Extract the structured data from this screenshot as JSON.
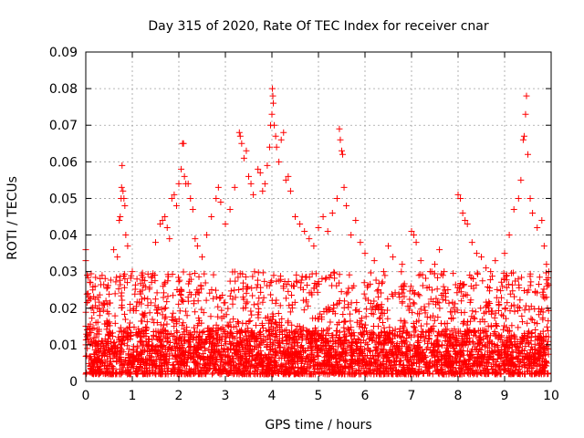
{
  "chart_data": {
    "type": "scatter",
    "title": "Day 315 of 2020, Rate Of TEC Index for receiver cnar",
    "xlabel": "GPS time / hours",
    "ylabel": "ROTI / TECUs",
    "xlim": [
      0,
      10
    ],
    "ylim": [
      0,
      0.09
    ],
    "x_ticks": [
      "0",
      "1",
      "2",
      "3",
      "4",
      "5",
      "6",
      "7",
      "8",
      "9",
      "10"
    ],
    "y_ticks": [
      "0",
      "0.01",
      "0.02",
      "0.03",
      "0.04",
      "0.05",
      "0.06",
      "0.07",
      "0.08",
      "0.09"
    ],
    "grid": true,
    "marker": "+",
    "marker_color": "#ff0000",
    "series": [
      {
        "points": [
          [
            0.0,
            0.033
          ],
          [
            0.0,
            0.036
          ],
          [
            0.03,
            0.029
          ],
          [
            0.05,
            0.024
          ],
          [
            0.08,
            0.023
          ],
          [
            0.1,
            0.027
          ],
          [
            0.15,
            0.025
          ],
          [
            0.2,
            0.026
          ],
          [
            0.25,
            0.02
          ],
          [
            0.3,
            0.018
          ],
          [
            0.6,
            0.036
          ],
          [
            0.68,
            0.034
          ],
          [
            0.72,
            0.044
          ],
          [
            0.74,
            0.045
          ],
          [
            0.76,
            0.05
          ],
          [
            0.77,
            0.053
          ],
          [
            0.78,
            0.059
          ],
          [
            0.8,
            0.052
          ],
          [
            0.82,
            0.05
          ],
          [
            0.84,
            0.048
          ],
          [
            0.86,
            0.04
          ],
          [
            0.9,
            0.037
          ],
          [
            1.0,
            0.03
          ],
          [
            1.1,
            0.028
          ],
          [
            1.2,
            0.029
          ],
          [
            1.5,
            0.038
          ],
          [
            1.6,
            0.043
          ],
          [
            1.65,
            0.044
          ],
          [
            1.7,
            0.045
          ],
          [
            1.75,
            0.042
          ],
          [
            1.8,
            0.039
          ],
          [
            1.85,
            0.05
          ],
          [
            1.9,
            0.051
          ],
          [
            1.95,
            0.048
          ],
          [
            2.0,
            0.054
          ],
          [
            2.05,
            0.058
          ],
          [
            2.08,
            0.065
          ],
          [
            2.1,
            0.065
          ],
          [
            2.12,
            0.056
          ],
          [
            2.15,
            0.054
          ],
          [
            2.2,
            0.054
          ],
          [
            2.25,
            0.05
          ],
          [
            2.3,
            0.047
          ],
          [
            2.35,
            0.039
          ],
          [
            2.4,
            0.037
          ],
          [
            2.5,
            0.034
          ],
          [
            2.6,
            0.04
          ],
          [
            2.7,
            0.045
          ],
          [
            2.8,
            0.05
          ],
          [
            2.85,
            0.053
          ],
          [
            2.9,
            0.049
          ],
          [
            3.0,
            0.043
          ],
          [
            3.1,
            0.047
          ],
          [
            3.2,
            0.053
          ],
          [
            3.3,
            0.068
          ],
          [
            3.32,
            0.067
          ],
          [
            3.35,
            0.065
          ],
          [
            3.4,
            0.061
          ],
          [
            3.45,
            0.063
          ],
          [
            3.5,
            0.056
          ],
          [
            3.55,
            0.054
          ],
          [
            3.6,
            0.051
          ],
          [
            3.7,
            0.058
          ],
          [
            3.75,
            0.057
          ],
          [
            3.8,
            0.052
          ],
          [
            3.85,
            0.054
          ],
          [
            3.9,
            0.059
          ],
          [
            3.95,
            0.064
          ],
          [
            3.97,
            0.07
          ],
          [
            4.0,
            0.073
          ],
          [
            4.01,
            0.08
          ],
          [
            4.02,
            0.078
          ],
          [
            4.03,
            0.076
          ],
          [
            4.05,
            0.07
          ],
          [
            4.08,
            0.067
          ],
          [
            4.1,
            0.064
          ],
          [
            4.15,
            0.06
          ],
          [
            4.2,
            0.066
          ],
          [
            4.25,
            0.068
          ],
          [
            4.3,
            0.055
          ],
          [
            4.35,
            0.056
          ],
          [
            4.4,
            0.052
          ],
          [
            4.5,
            0.045
          ],
          [
            4.6,
            0.043
          ],
          [
            4.7,
            0.041
          ],
          [
            4.8,
            0.039
          ],
          [
            4.9,
            0.037
          ],
          [
            5.0,
            0.042
          ],
          [
            5.1,
            0.045
          ],
          [
            5.2,
            0.041
          ],
          [
            5.3,
            0.046
          ],
          [
            5.4,
            0.05
          ],
          [
            5.45,
            0.069
          ],
          [
            5.47,
            0.066
          ],
          [
            5.5,
            0.063
          ],
          [
            5.52,
            0.062
          ],
          [
            5.55,
            0.053
          ],
          [
            5.6,
            0.048
          ],
          [
            5.7,
            0.04
          ],
          [
            5.8,
            0.044
          ],
          [
            5.9,
            0.038
          ],
          [
            6.0,
            0.035
          ],
          [
            6.2,
            0.033
          ],
          [
            6.4,
            0.03
          ],
          [
            6.5,
            0.037
          ],
          [
            6.6,
            0.034
          ],
          [
            6.8,
            0.032
          ],
          [
            7.0,
            0.041
          ],
          [
            7.05,
            0.04
          ],
          [
            7.1,
            0.038
          ],
          [
            7.2,
            0.033
          ],
          [
            7.4,
            0.03
          ],
          [
            7.5,
            0.032
          ],
          [
            7.6,
            0.036
          ],
          [
            7.7,
            0.03
          ],
          [
            8.0,
            0.051
          ],
          [
            8.05,
            0.05
          ],
          [
            8.1,
            0.046
          ],
          [
            8.15,
            0.044
          ],
          [
            8.2,
            0.043
          ],
          [
            8.3,
            0.038
          ],
          [
            8.4,
            0.035
          ],
          [
            8.5,
            0.034
          ],
          [
            8.6,
            0.031
          ],
          [
            8.7,
            0.03
          ],
          [
            8.8,
            0.033
          ],
          [
            9.0,
            0.035
          ],
          [
            9.1,
            0.04
          ],
          [
            9.2,
            0.047
          ],
          [
            9.3,
            0.05
          ],
          [
            9.35,
            0.055
          ],
          [
            9.4,
            0.066
          ],
          [
            9.42,
            0.067
          ],
          [
            9.45,
            0.073
          ],
          [
            9.47,
            0.078
          ],
          [
            9.5,
            0.062
          ],
          [
            9.55,
            0.05
          ],
          [
            9.6,
            0.046
          ],
          [
            9.7,
            0.042
          ],
          [
            9.8,
            0.044
          ],
          [
            9.85,
            0.037
          ],
          [
            9.9,
            0.032
          ],
          [
            9.95,
            0.03
          ]
        ],
        "dense_band": {
          "x_range": [
            0,
            9.95
          ],
          "typical_y_range": [
            0.002,
            0.03
          ]
        }
      }
    ]
  }
}
